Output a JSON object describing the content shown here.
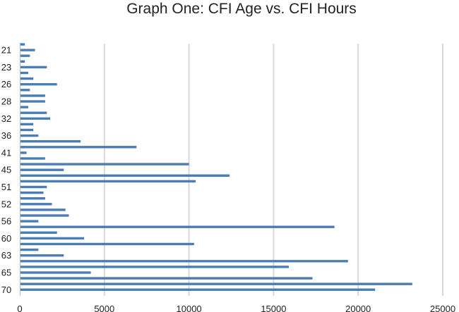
{
  "chart_data": {
    "type": "bar",
    "orientation": "horizontal",
    "title": "Graph One: CFI Age vs. CFI Hours",
    "xlabel": "",
    "ylabel": "",
    "xlim": [
      0,
      25000
    ],
    "x_ticks": [
      "0",
      "5000",
      "10000",
      "15000",
      "20000",
      "25000"
    ],
    "y_tick_labels": [
      "21",
      "23",
      "26",
      "28",
      "32",
      "36",
      "41",
      "45",
      "51",
      "52",
      "56",
      "60",
      "63",
      "65",
      "70"
    ],
    "grid": "vertical",
    "legend": "none",
    "bar_color": "#4a7db5",
    "values": [
      300,
      900,
      600,
      300,
      1600,
      500,
      800,
      2200,
      600,
      1500,
      1500,
      500,
      1600,
      1800,
      800,
      800,
      1100,
      3600,
      6900,
      400,
      1500,
      10000,
      2600,
      12400,
      10400,
      1600,
      1400,
      1500,
      1900,
      2700,
      2900,
      1100,
      18600,
      2200,
      3800,
      10300,
      1100,
      2600,
      19400,
      15900,
      4200,
      17300,
      23200,
      21000
    ]
  }
}
